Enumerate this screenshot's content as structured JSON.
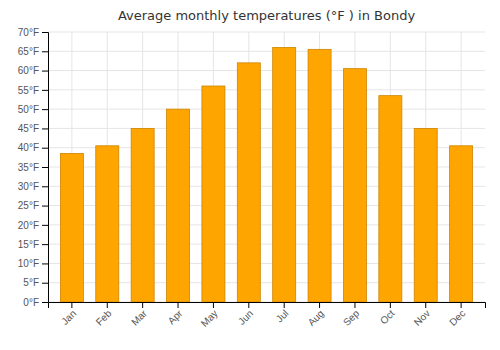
{
  "chart_data": {
    "type": "bar",
    "title": "Average monthly temperatures (°F ) in Bondy",
    "categories": [
      "Jan",
      "Feb",
      "Mar",
      "Apr",
      "May",
      "Jun",
      "Jul",
      "Aug",
      "Sep",
      "Oct",
      "Nov",
      "Dec"
    ],
    "values": [
      38.5,
      40.5,
      45.0,
      50.0,
      56.0,
      62.0,
      66.0,
      65.5,
      60.5,
      53.5,
      45.0,
      40.5
    ],
    "color": "#FFA500",
    "ylim": [
      0,
      70
    ],
    "yticks": [
      {
        "value": 0,
        "label": "0°F"
      },
      {
        "value": 5,
        "label": "5°F"
      },
      {
        "value": 10,
        "label": "10°F"
      },
      {
        "value": 15,
        "label": "15°F"
      },
      {
        "value": 20,
        "label": "20°F"
      },
      {
        "value": 25,
        "label": "25°F"
      },
      {
        "value": 30,
        "label": "30°F"
      },
      {
        "value": 35,
        "label": "35°F"
      },
      {
        "value": 40,
        "label": "40°F"
      },
      {
        "value": 45,
        "label": "45°F"
      },
      {
        "value": 50,
        "label": "50°F"
      },
      {
        "value": 55,
        "label": "55°F"
      },
      {
        "value": 60,
        "label": "60°F"
      },
      {
        "value": 65,
        "label": "65°F"
      },
      {
        "value": 70,
        "label": "70°F"
      }
    ],
    "grid": true
  }
}
